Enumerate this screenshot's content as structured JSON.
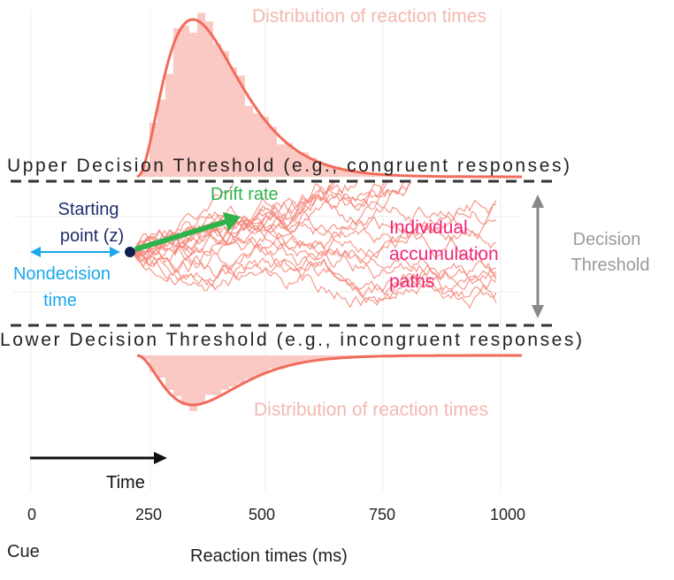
{
  "labels": {
    "upper_distribution": "Distribution of reaction times",
    "lower_distribution": "Distribution of reaction times",
    "upper_threshold": "Upper Decision Threshold (e.g., congruent responses)",
    "lower_threshold": "Lower Decision Threshold (e.g., incongruent responses)",
    "starting_point_line1": "Starting",
    "starting_point_line2": "point (z)",
    "drift_rate": "Drift rate",
    "nondecision_line1": "Nondecision",
    "nondecision_line2": "time",
    "paths_line1": "Individual",
    "paths_line2": "accumulation",
    "paths_line3": "paths",
    "threshold_line1": "Decision",
    "threshold_line2": "Threshold",
    "time": "Time",
    "cue": "Cue",
    "xlabel": "Reaction times (ms)"
  },
  "x_ticks": [
    "0",
    "250",
    "500",
    "750",
    "1000"
  ],
  "colors": {
    "distribution": "#f26b5b",
    "distribution_fill": "#fbc9c3",
    "distribution_text": "#f4b8b0",
    "paths": "#f5877a",
    "starting_point": "#1e2f6e",
    "drift": "#2db34a",
    "nondecision": "#1aa7ec",
    "paths_text": "#f0287a",
    "threshold_text": "#9a9a9a"
  }
}
